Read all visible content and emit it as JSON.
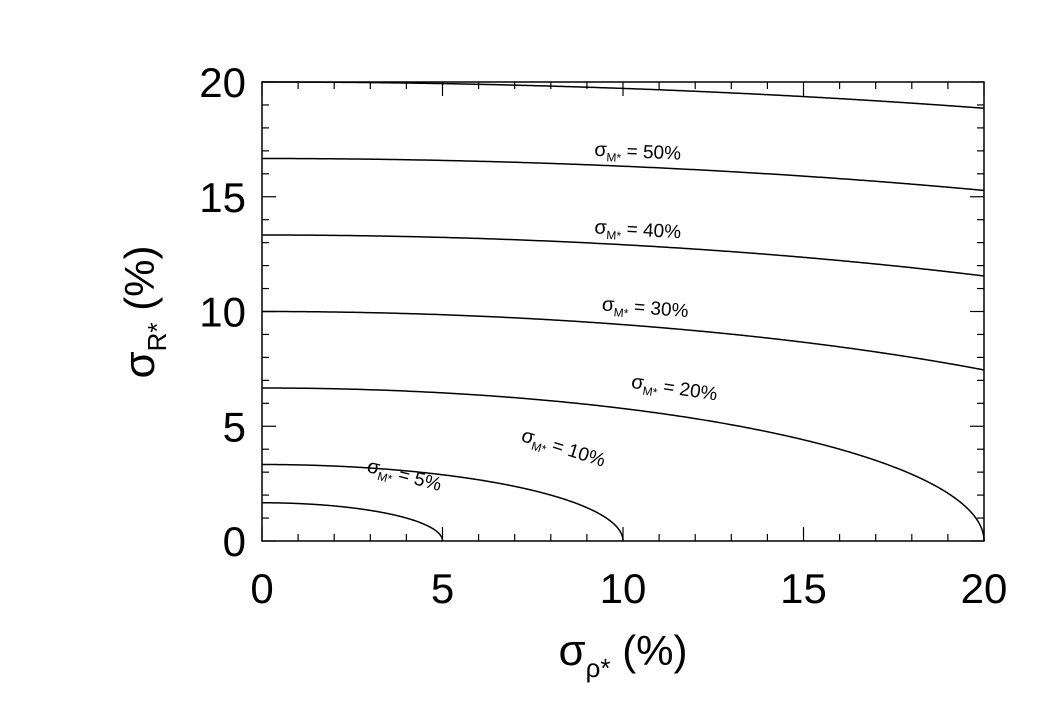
{
  "chart_data": {
    "type": "line",
    "title": "",
    "xlabel": {
      "symbol": "σ",
      "subscript": "ρ*",
      "suffix": " (%)"
    },
    "ylabel": {
      "symbol": "σ",
      "subscript": "R*",
      "suffix": " (%)"
    },
    "xlim": [
      0,
      20
    ],
    "ylim": [
      0,
      20
    ],
    "xticks": [
      0,
      5,
      10,
      15,
      20
    ],
    "yticks": [
      0,
      5,
      10,
      15,
      20
    ],
    "xtick_labels": [
      "0",
      "5",
      "10",
      "15",
      "20"
    ],
    "ytick_labels": [
      "0",
      "5",
      "10",
      "15",
      "20"
    ],
    "grid": false,
    "relation": "sigma_M^2 = (3*sigma_R)^2 + sigma_rho^2",
    "series": [
      {
        "label": {
          "symbol": "σ",
          "subscript": "M*",
          "text": " =  5%"
        },
        "sigma_m": 5
      },
      {
        "label": {
          "symbol": "σ",
          "subscript": "M*",
          "text": " = 10%"
        },
        "sigma_m": 10
      },
      {
        "label": {
          "symbol": "σ",
          "subscript": "M*",
          "text": " = 20%"
        },
        "sigma_m": 20
      },
      {
        "label": {
          "symbol": "σ",
          "subscript": "M*",
          "text": " = 30%"
        },
        "sigma_m": 30
      },
      {
        "label": {
          "symbol": "σ",
          "subscript": "M*",
          "text": " = 40%"
        },
        "sigma_m": 40
      },
      {
        "label": {
          "symbol": "σ",
          "subscript": "M*",
          "text": " = 50%"
        },
        "sigma_m": 50
      },
      {
        "label": null,
        "sigma_m": 60
      }
    ]
  }
}
